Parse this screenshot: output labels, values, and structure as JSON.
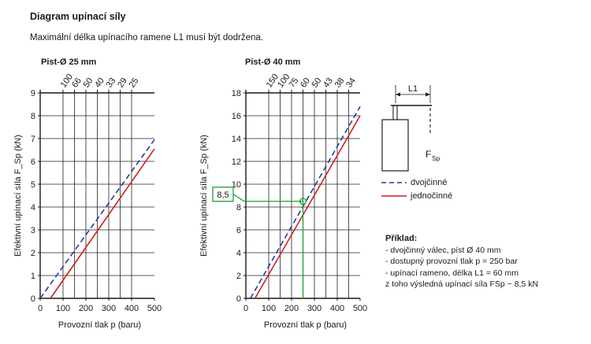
{
  "header": {
    "title": "Diagram upínací síly",
    "subtitle": "Maximální délka upínacího ramene L1 musí být dodržena."
  },
  "colors": {
    "double_acting": "#1f3f9e",
    "single_acting": "#d0201f",
    "example": "#1a9e32",
    "axis": "#1a1a1a"
  },
  "chart_data": [
    {
      "type": "line",
      "title": "Pist-Ø 25 mm",
      "xlabel": "Provozní tlak p (baru)",
      "ylabel": "Efektivní upínací síla F_Sp (kN)",
      "xlim": [
        0,
        500
      ],
      "ylim": [
        0,
        9
      ],
      "x_ticks": [
        0,
        100,
        200,
        300,
        400,
        500
      ],
      "y_ticks": [
        0,
        1,
        2,
        3,
        4,
        5,
        6,
        7,
        8,
        9
      ],
      "grid": true,
      "top_axis": {
        "label": "L1",
        "ticks": [
          "100",
          "66",
          "50",
          "40",
          "33",
          "29",
          "25"
        ],
        "positions": [
          100,
          150,
          200,
          250,
          300,
          350,
          400
        ]
      },
      "series": [
        {
          "name": "dvojčinné",
          "style": "dashed",
          "x": [
            0,
            500
          ],
          "y": [
            0,
            6.95
          ]
        },
        {
          "name": "jednočinné",
          "style": "solid",
          "x": [
            45,
            500
          ],
          "y": [
            0,
            6.55
          ]
        }
      ]
    },
    {
      "type": "line",
      "title": "Pist-Ø 40 mm",
      "xlabel": "Provozní tlak p (baru)",
      "ylabel": "Efektivní upínací síla F_Sp (kN)",
      "xlim": [
        0,
        500
      ],
      "ylim": [
        0,
        18
      ],
      "x_ticks": [
        0,
        100,
        200,
        300,
        400,
        500
      ],
      "y_ticks": [
        0,
        2,
        4,
        6,
        8,
        10,
        12,
        14,
        16,
        18
      ],
      "grid": true,
      "top_axis": {
        "label": "L1",
        "ticks": [
          "150",
          "100",
          "75",
          "60",
          "50",
          "43",
          "38",
          "34"
        ],
        "positions": [
          100,
          150,
          200,
          250,
          300,
          350,
          400,
          450
        ]
      },
      "series": [
        {
          "name": "dvojčinné",
          "style": "dashed",
          "x": [
            20,
            500
          ],
          "y": [
            0,
            16.8
          ]
        },
        {
          "name": "jednočinné",
          "style": "solid",
          "x": [
            40,
            500
          ],
          "y": [
            0,
            16.0
          ]
        }
      ],
      "annotation": {
        "label": "8,5",
        "x": 250,
        "y": 8.5
      }
    }
  ],
  "legend": {
    "double_label": "dvojčinné",
    "single_label": "jednočinné",
    "l1_label": "L1",
    "fsp_label": "F",
    "fsp_sub": "Sp"
  },
  "example": {
    "title": "Příklad:",
    "lines": [
      "- dvojčinný válec, píst Ø 40 mm",
      "- dostupný provozní tlak p = 250 bar",
      "- upínací rameno, délka L1 = 60 mm",
      "z toho výsledná upínací síla FSp ~ 8,5 kN"
    ]
  }
}
